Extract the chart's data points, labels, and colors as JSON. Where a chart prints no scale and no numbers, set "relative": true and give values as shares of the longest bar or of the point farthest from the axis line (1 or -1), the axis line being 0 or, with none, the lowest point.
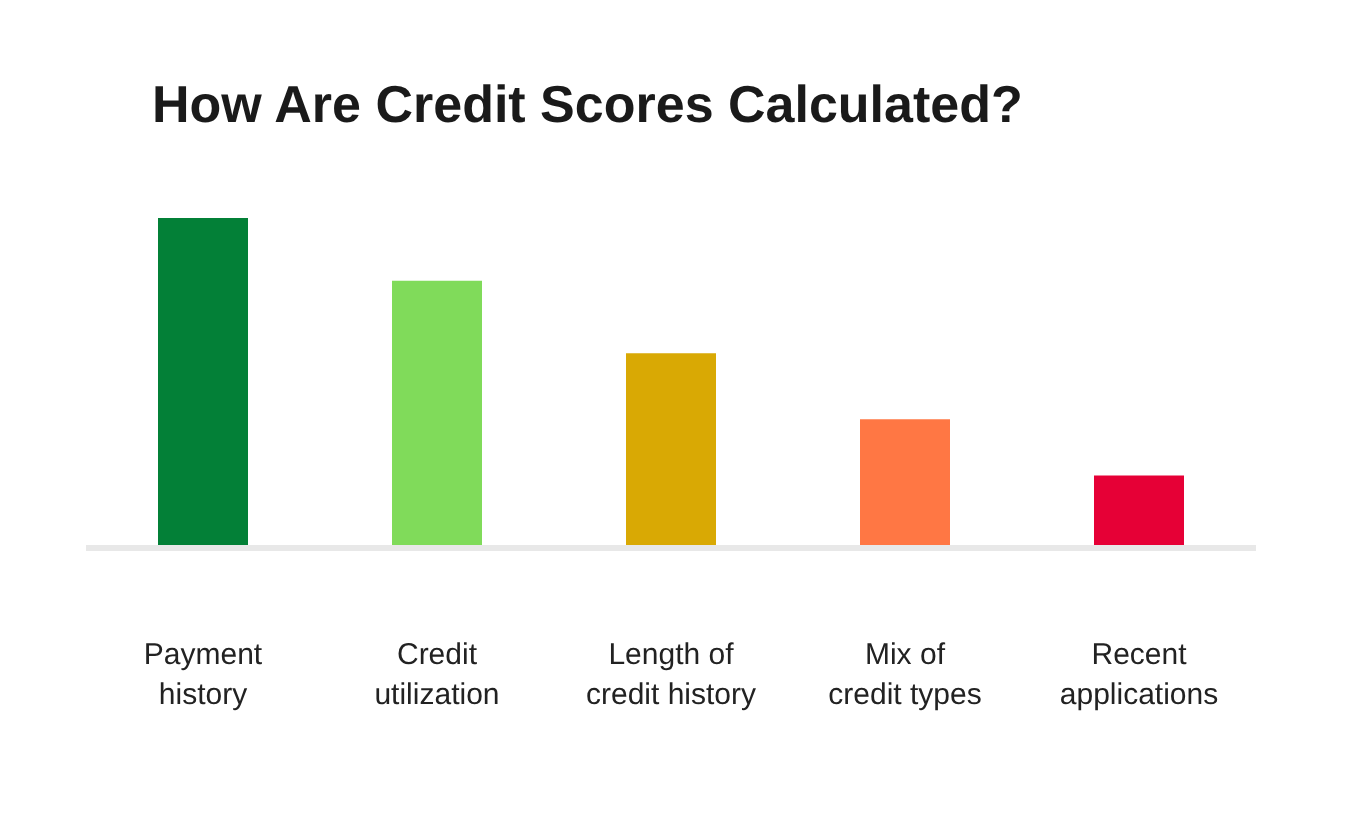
{
  "chart_data": {
    "type": "bar",
    "title": "How Are Credit Scores Calculated?",
    "categories": [
      "Payment history",
      "Credit utilization",
      "Length of credit history",
      "Mix of credit types",
      "Recent applications"
    ],
    "values": [
      1,
      0.81,
      0.59,
      0.39,
      0.22
    ],
    "colors": [
      "#038037",
      "#80db5a",
      "#d9a904",
      "#ff7744",
      "#e60036"
    ],
    "relative": true
  }
}
